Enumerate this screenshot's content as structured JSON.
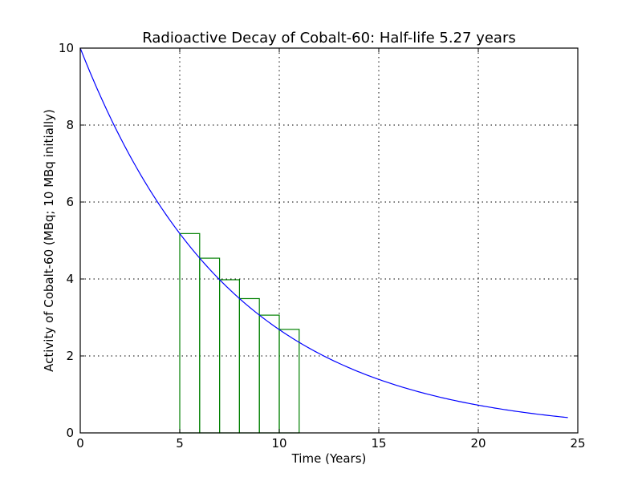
{
  "chart_data": {
    "type": "line",
    "title": "Radioactive Decay of Cobalt-60: Half-life 5.27 years",
    "xlabel": "Time (Years)",
    "ylabel": "Activity of Cobalt-60 (MBq; 10 MBq initially)",
    "xlim": [
      0,
      25
    ],
    "ylim": [
      0,
      10
    ],
    "x_ticks": [
      0,
      5,
      10,
      15,
      20,
      25
    ],
    "y_ticks": [
      0,
      2,
      4,
      6,
      8,
      10
    ],
    "grid": true,
    "curve": {
      "color": "#0000ff",
      "initial_activity": 10,
      "half_life": 5.27,
      "x_start": 0,
      "x_end": 24.5
    },
    "bars": {
      "color": "#008000",
      "items": [
        {
          "x0": 5,
          "x1": 6,
          "height": 5.18
        },
        {
          "x0": 6,
          "x1": 7,
          "height": 4.54
        },
        {
          "x0": 7,
          "x1": 8,
          "height": 3.98
        },
        {
          "x0": 8,
          "x1": 9,
          "height": 3.49
        },
        {
          "x0": 9,
          "x1": 10,
          "height": 3.06
        },
        {
          "x0": 10,
          "x1": 11,
          "height": 2.69
        }
      ]
    }
  }
}
